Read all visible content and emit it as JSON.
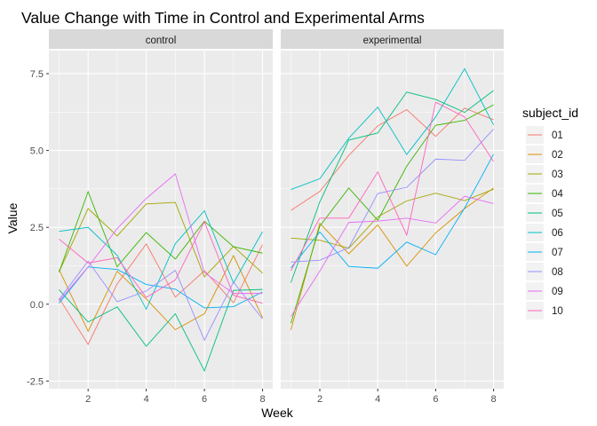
{
  "chart_data": {
    "type": "line",
    "title": "Value Change with Time in Control and Experimental Arms",
    "xlabel": "Week",
    "ylabel": "Value",
    "xlim": [
      0.65,
      8.35
    ],
    "ylim": [
      -2.75,
      8.25
    ],
    "x_ticks": [
      2,
      4,
      6,
      8
    ],
    "y_ticks": [
      -2.5,
      0.0,
      2.5,
      5.0,
      7.5
    ],
    "y_tick_labels": [
      "-2.5",
      "0.0",
      "2.5",
      "5.0",
      "7.5"
    ],
    "grid": true,
    "legend_position": "right",
    "legend": {
      "title": "subject_id",
      "entries": [
        "01",
        "02",
        "03",
        "04",
        "05",
        "06",
        "07",
        "08",
        "09",
        "10"
      ],
      "colors": [
        "#F8766D",
        "#D89000",
        "#A3A500",
        "#39B600",
        "#00BF7D",
        "#00BFC4",
        "#00B0F6",
        "#9590FF",
        "#E76BF3",
        "#FF62BC"
      ]
    },
    "x": [
      1,
      2,
      3,
      4,
      5,
      6,
      7,
      8
    ],
    "facets": [
      {
        "label": "control",
        "series": [
          {
            "name": "01",
            "values": [
              0.2,
              -1.31,
              0.66,
              1.96,
              0.23,
              1.09,
              0.05,
              1.94
            ]
          },
          {
            "name": "02",
            "values": [
              1.13,
              -0.88,
              1.07,
              0.17,
              -0.83,
              -0.31,
              1.58,
              -0.44
            ]
          },
          {
            "name": "03",
            "values": [
              1.05,
              3.11,
              2.22,
              3.26,
              3.31,
              0.89,
              1.88,
              1.01
            ]
          },
          {
            "name": "04",
            "values": [
              1.04,
              3.66,
              1.22,
              2.33,
              1.47,
              2.7,
              1.87,
              1.66
            ]
          },
          {
            "name": "05",
            "values": [
              0.47,
              -0.58,
              -0.09,
              -1.37,
              -0.31,
              -2.17,
              0.45,
              0.48
            ]
          },
          {
            "name": "06",
            "values": [
              2.37,
              2.5,
              1.59,
              -0.16,
              1.97,
              3.04,
              0.69,
              2.36
            ]
          },
          {
            "name": "07",
            "values": [
              0.03,
              1.21,
              1.13,
              0.64,
              0.49,
              -0.12,
              -0.08,
              0.4
            ]
          },
          {
            "name": "08",
            "values": [
              0.15,
              1.4,
              0.08,
              0.43,
              1.1,
              -1.17,
              0.72,
              -0.48
            ]
          },
          {
            "name": "09",
            "values": [
              0.1,
              1.21,
              2.46,
              3.44,
              4.24,
              1.03,
              0.35,
              0.35
            ]
          },
          {
            "name": "10",
            "values": [
              2.12,
              1.34,
              1.51,
              0.22,
              0.79,
              2.68,
              0.29,
              0.03
            ]
          }
        ]
      },
      {
        "label": "experimental",
        "series": [
          {
            "name": "01",
            "values": [
              3.05,
              3.67,
              4.84,
              5.8,
              6.33,
              5.46,
              6.38,
              6.0
            ]
          },
          {
            "name": "02",
            "values": [
              -0.84,
              2.63,
              1.64,
              2.58,
              1.24,
              2.32,
              3.11,
              3.78
            ]
          },
          {
            "name": "03",
            "values": [
              2.15,
              2.08,
              1.82,
              2.84,
              3.36,
              3.61,
              3.37,
              3.74
            ]
          },
          {
            "name": "04",
            "values": [
              -0.62,
              2.54,
              3.78,
              2.73,
              4.49,
              5.82,
              5.98,
              6.49
            ]
          },
          {
            "name": "05",
            "values": [
              0.7,
              3.33,
              5.34,
              5.57,
              6.9,
              6.66,
              6.24,
              6.95
            ]
          },
          {
            "name": "06",
            "values": [
              3.73,
              4.08,
              5.4,
              6.41,
              4.87,
              6.09,
              7.66,
              5.83
            ]
          },
          {
            "name": "07",
            "values": [
              1.18,
              2.35,
              1.23,
              1.17,
              2.02,
              1.61,
              3.13,
              4.88
            ]
          },
          {
            "name": "08",
            "values": [
              1.37,
              1.43,
              1.84,
              3.6,
              3.8,
              4.72,
              4.68,
              5.7
            ]
          },
          {
            "name": "09",
            "values": [
              -0.4,
              1.08,
              2.66,
              2.7,
              2.8,
              2.64,
              3.51,
              3.27
            ]
          },
          {
            "name": "10",
            "values": [
              1.09,
              2.8,
              2.8,
              4.3,
              2.25,
              6.57,
              6.09,
              4.64
            ]
          }
        ]
      }
    ]
  }
}
